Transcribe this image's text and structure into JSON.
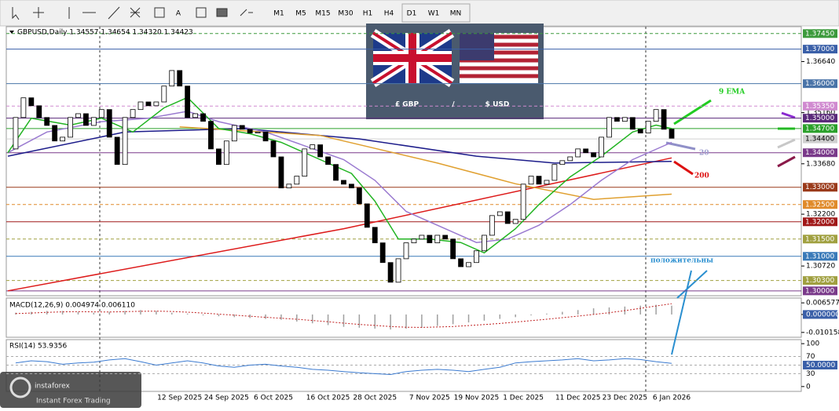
{
  "toolbar": {
    "tools": [
      "A"
    ],
    "timeframes": [
      "M1",
      "M5",
      "M15",
      "M30",
      "H1",
      "H4",
      "D1",
      "W1",
      "MN"
    ]
  },
  "banner": {
    "left": "£ GBP",
    "sep": "/",
    "right": "$ USD"
  },
  "logo": {
    "name": "instaforex",
    "tagline": "Instant Forex Trading"
  },
  "annotations": [
    {
      "text": "9 EMA",
      "color": "#22cc22"
    },
    {
      "text": "20",
      "color": "#a0a0d0"
    },
    {
      "text": "200",
      "color": "#dd1111"
    },
    {
      "text": "положительны",
      "color": "#2a8fd0"
    }
  ],
  "chart_data": {
    "type": "candlestick",
    "title": "GBPUSD,Daily  1.34557 1.34654 1.34320 1.34423",
    "up_color": "#ffffff",
    "down_color": "#000000",
    "categories": [
      null,
      null,
      null,
      null,
      null,
      null,
      null,
      null,
      null,
      null,
      null,
      null,
      null,
      null,
      null,
      null,
      null,
      null,
      null,
      null,
      null,
      null,
      "12 Sep 2025",
      null,
      null,
      null,
      null,
      null,
      "24 Sep 2025",
      null,
      null,
      null,
      null,
      null,
      "6 Oct 2025",
      null,
      null,
      null,
      null,
      null,
      null,
      "16 Oct 2025",
      null,
      null,
      null,
      null,
      null,
      "28 Oct 2025",
      null,
      null,
      null,
      null,
      null,
      null,
      "7 Nov 2025",
      null,
      null,
      null,
      null,
      null,
      "19 Nov 2025",
      null,
      null,
      null,
      null,
      null,
      "1 Dec 2025",
      null,
      null,
      null,
      null,
      null,
      null,
      "11 Dec 2025",
      null,
      null,
      null,
      null,
      null,
      "23 Dec 2025",
      null,
      null,
      null,
      null,
      null,
      "6 Jan 2026"
    ],
    "closes": [
      1.3411,
      1.3502,
      1.3559,
      1.3536,
      1.3502,
      1.3479,
      1.3434,
      1.3445,
      1.3502,
      1.3513,
      1.3479,
      1.3502,
      1.3525,
      1.3445,
      1.3366,
      1.3502,
      1.3525,
      1.3547,
      1.3536,
      1.3547,
      1.3593,
      1.3638,
      1.3593,
      1.3502,
      1.3513,
      1.3491,
      1.3411,
      1.3366,
      1.3434,
      1.3479,
      1.3468,
      1.3457,
      1.346,
      1.3434,
      1.3388,
      1.3298,
      1.3309,
      1.3332,
      1.3411,
      1.3423,
      1.3388,
      1.3366,
      1.332,
      1.3309,
      1.3298,
      1.3252,
      1.3184,
      1.3139,
      1.3082,
      1.3025,
      1.3093,
      1.3139,
      1.315,
      1.3161,
      1.3139,
      1.3161,
      1.315,
      1.3093,
      1.307,
      1.3082,
      1.3116,
      1.3161,
      1.3218,
      1.3229,
      1.3195,
      1.3207,
      1.3309,
      1.3332,
      1.3309,
      1.332,
      1.3366,
      1.3377,
      1.3388,
      1.3411,
      1.34,
      1.3388,
      1.3445,
      1.3502,
      1.3491,
      1.3502,
      1.3468,
      1.3457,
      1.3491,
      1.3525,
      1.3468,
      1.3442
    ],
    "lines": [
      {
        "color": "#dd1a1a",
        "points": [
          [
            0,
            1.3
          ],
          [
            43,
            1.318
          ],
          [
            85,
            1.3385
          ]
        ]
      },
      {
        "color": "#1c1c8a",
        "points": [
          [
            0,
            1.339
          ],
          [
            15,
            1.346
          ],
          [
            30,
            1.347
          ],
          [
            45,
            1.344
          ],
          [
            60,
            1.339
          ],
          [
            70,
            1.337
          ],
          [
            85,
            1.3375
          ]
        ]
      },
      {
        "color": "#e0a030",
        "points": [
          [
            22,
            1.3475
          ],
          [
            40,
            1.345
          ],
          [
            55,
            1.337
          ],
          [
            65,
            1.331
          ],
          [
            75,
            1.3265
          ],
          [
            85,
            1.328
          ]
        ]
      },
      {
        "color": "#9a7ad0",
        "points": [
          [
            0,
            1.34
          ],
          [
            5,
            1.346
          ],
          [
            12,
            1.349
          ],
          [
            18,
            1.35
          ],
          [
            23,
            1.352
          ],
          [
            27,
            1.349
          ],
          [
            33,
            1.346
          ],
          [
            38,
            1.342
          ],
          [
            43,
            1.338
          ],
          [
            47,
            1.332
          ],
          [
            51,
            1.323
          ],
          [
            56,
            1.318
          ],
          [
            60,
            1.314
          ],
          [
            64,
            1.315
          ],
          [
            68,
            1.319
          ],
          [
            72,
            1.325
          ],
          [
            76,
            1.332
          ],
          [
            80,
            1.338
          ],
          [
            85,
            1.343
          ]
        ]
      },
      {
        "color": "#22b422",
        "points": [
          [
            0,
            1.34
          ],
          [
            3,
            1.35
          ],
          [
            8,
            1.348
          ],
          [
            12,
            1.35
          ],
          [
            16,
            1.346
          ],
          [
            20,
            1.353
          ],
          [
            23,
            1.356
          ],
          [
            27,
            1.347
          ],
          [
            31,
            1.3455
          ],
          [
            35,
            1.343
          ],
          [
            40,
            1.338
          ],
          [
            44,
            1.334
          ],
          [
            47,
            1.326
          ],
          [
            50,
            1.315
          ],
          [
            54,
            1.315
          ],
          [
            58,
            1.314
          ],
          [
            61,
            1.311
          ],
          [
            65,
            1.318
          ],
          [
            68,
            1.325
          ],
          [
            72,
            1.333
          ],
          [
            76,
            1.339
          ],
          [
            80,
            1.346
          ],
          [
            83,
            1.348
          ],
          [
            85,
            1.347
          ]
        ]
      }
    ],
    "ylim": [
      1.2986,
      1.3765
    ],
    "yticks": [
      {
        "value": 1.3664,
        "label": "1.36640"
      },
      {
        "value": 1.3516,
        "label": "1.35160"
      },
      {
        "value": 1.3368,
        "label": "1.33680"
      },
      {
        "value": 1.3222,
        "label": "1.32200"
      },
      {
        "value": 1.3072,
        "label": "1.30720"
      }
    ],
    "levels": [
      {
        "value": 1.3745,
        "label": "1.37450",
        "color": "#3c9a3c",
        "style": "dash"
      },
      {
        "value": 1.37,
        "label": "1.37000",
        "color": "#3a5fa8",
        "style": "solid"
      },
      {
        "value": 1.36,
        "label": "1.36000",
        "color": "#4a74a8",
        "style": "solid"
      },
      {
        "value": 1.3535,
        "label": "1.35350",
        "color": "#d08ad0",
        "style": "dash"
      },
      {
        "value": 1.35,
        "label": "1.35000",
        "color": "#5a2a7a",
        "style": "solid"
      },
      {
        "value": 1.347,
        "label": "1.34700",
        "color": "#2aa02a",
        "style": "solid"
      },
      {
        "value": 1.344,
        "label": "1.34400",
        "color": "#d0d0d0",
        "style": "solid"
      },
      {
        "value": 1.34,
        "label": "1.34000",
        "color": "#7a3a8a",
        "style": "solid"
      },
      {
        "value": 1.33,
        "label": "1.33000",
        "color": "#9a3a1a",
        "style": "solid"
      },
      {
        "value": 1.325,
        "label": "1.32500",
        "color": "#e08a2a",
        "style": "dash"
      },
      {
        "value": 1.32,
        "label": "1.32000",
        "color": "#a01818",
        "style": "solid"
      },
      {
        "value": 1.315,
        "label": "1.31500",
        "color": "#a0a040",
        "style": "dash"
      },
      {
        "value": 1.31,
        "label": "1.31000",
        "color": "#3a7ab8",
        "style": "solid"
      },
      {
        "value": 1.303,
        "label": "1.30300",
        "color": "#a0a040",
        "style": "dash"
      },
      {
        "value": 1.3,
        "label": "1.30000",
        "color": "#7a3a8a",
        "style": "solid"
      }
    ],
    "macd": {
      "title": "MACD(12,26,9) 0.004974 0.006110",
      "color": "#a0a0a0",
      "signal_color": "#c02020",
      "histogram": [
        0.001,
        0.0015,
        0.002,
        0.002,
        0.0015,
        0.001,
        0.0015,
        0.002,
        0.0025,
        0.002,
        0.001,
        0.0005,
        -0.0005,
        -0.001,
        -0.0015,
        -0.002,
        -0.0025,
        -0.003,
        -0.004,
        -0.005,
        -0.006,
        -0.007,
        -0.0075,
        -0.008,
        -0.0085,
        -0.008,
        -0.0075,
        -0.0065,
        -0.0055,
        -0.0045,
        -0.0035,
        -0.0025,
        -0.0015,
        -0.0005,
        0.0005,
        0.0015,
        0.0025,
        0.0035,
        0.004,
        0.0045,
        0.005,
        0.0055,
        0.005
      ],
      "signal": [
        0.0005,
        0.0008,
        0.0012,
        0.0015,
        0.0016,
        0.0015,
        0.0014,
        0.0016,
        0.0018,
        0.0019,
        0.0017,
        0.0013,
        0.0008,
        0.0002,
        -0.0004,
        -0.001,
        -0.0016,
        -0.0021,
        -0.0027,
        -0.0034,
        -0.0041,
        -0.0049,
        -0.0056,
        -0.0062,
        -0.0068,
        -0.0072,
        -0.0073,
        -0.0071,
        -0.0068,
        -0.0063,
        -0.0057,
        -0.0051,
        -0.0043,
        -0.0035,
        -0.0027,
        -0.0018,
        -0.0009,
        0.0,
        0.001,
        0.0022,
        0.0035,
        0.0048,
        0.0061
      ],
      "ylim": [
        -0.0129,
        0.0093
      ],
      "yticks": [
        0.006577,
        {
          "value": 0,
          "label": "0.000000"
        },
        -0.010158
      ]
    },
    "rsi": {
      "title": "RSI(14) 53.9356",
      "color": "#3a7ad0",
      "values": [
        55,
        60,
        58,
        52,
        55,
        57,
        62,
        65,
        58,
        50,
        55,
        60,
        55,
        48,
        45,
        50,
        52,
        48,
        45,
        40,
        38,
        35,
        32,
        30,
        28,
        35,
        38,
        40,
        38,
        35,
        40,
        45,
        55,
        58,
        60,
        62,
        65,
        60,
        62,
        65,
        63,
        58,
        54
      ],
      "ylim": [
        -11.3,
        109.4
      ],
      "yticks": [
        100,
        70,
        {
          "value": 50,
          "label": "50.0000"
        },
        30,
        0
      ]
    }
  }
}
